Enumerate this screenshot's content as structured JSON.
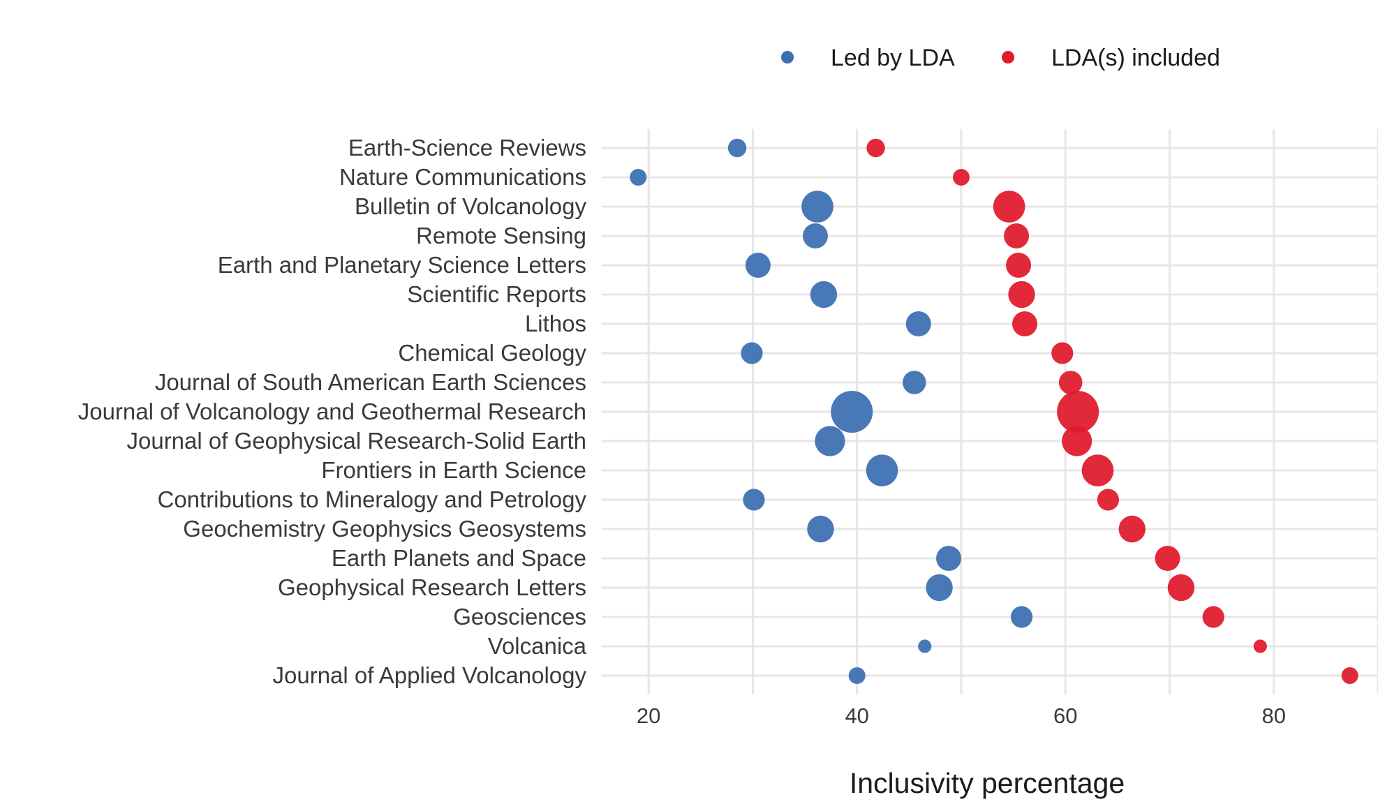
{
  "chart_data": {
    "type": "scatter",
    "subtype": "dumbbell-bubble",
    "xlabel": "Inclusivity percentage",
    "ylabel": "",
    "xlim": [
      15.5,
      90
    ],
    "xticks": [
      20,
      40,
      60,
      80
    ],
    "grid": true,
    "legend_position": "top",
    "categories": [
      "Earth-Science Reviews",
      "Nature Communications",
      "Bulletin of Volcanology",
      "Remote Sensing",
      "Earth and Planetary Science Letters",
      "Scientific Reports",
      "Lithos",
      "Chemical Geology",
      "Journal of South American Earth Sciences",
      "Journal of Volcanology and Geothermal Research",
      "Journal of Geophysical Research-Solid Earth",
      "Frontiers in Earth Science",
      "Contributions to Mineralogy and Petrology",
      "Geochemistry Geophysics Geosystems",
      "Earth Planets and Space",
      "Geophysical Research Letters",
      "Geosciences",
      "Volcanica",
      "Journal of Applied Volcanology"
    ],
    "relative_size": [
      0.3,
      0.25,
      0.7,
      0.5,
      0.5,
      0.55,
      0.5,
      0.4,
      0.45,
      1.0,
      0.65,
      0.7,
      0.4,
      0.55,
      0.5,
      0.55,
      0.4,
      0.15,
      0.25
    ],
    "series": [
      {
        "name": "Led by LDA",
        "color": "#3A6FB0",
        "values": [
          28.5,
          19,
          36.2,
          36.0,
          30.5,
          36.8,
          45.9,
          29.9,
          45.5,
          39.5,
          37.4,
          42.4,
          30.1,
          36.5,
          48.8,
          47.9,
          55.8,
          46.5,
          40.0
        ]
      },
      {
        "name": "LDA(s) included",
        "color": "#E0192B",
        "values": [
          41.8,
          50.0,
          54.6,
          55.3,
          55.5,
          55.8,
          56.1,
          59.7,
          60.5,
          61.2,
          61.1,
          63.1,
          64.1,
          66.4,
          69.8,
          71.1,
          74.2,
          78.7,
          87.3
        ]
      }
    ]
  }
}
